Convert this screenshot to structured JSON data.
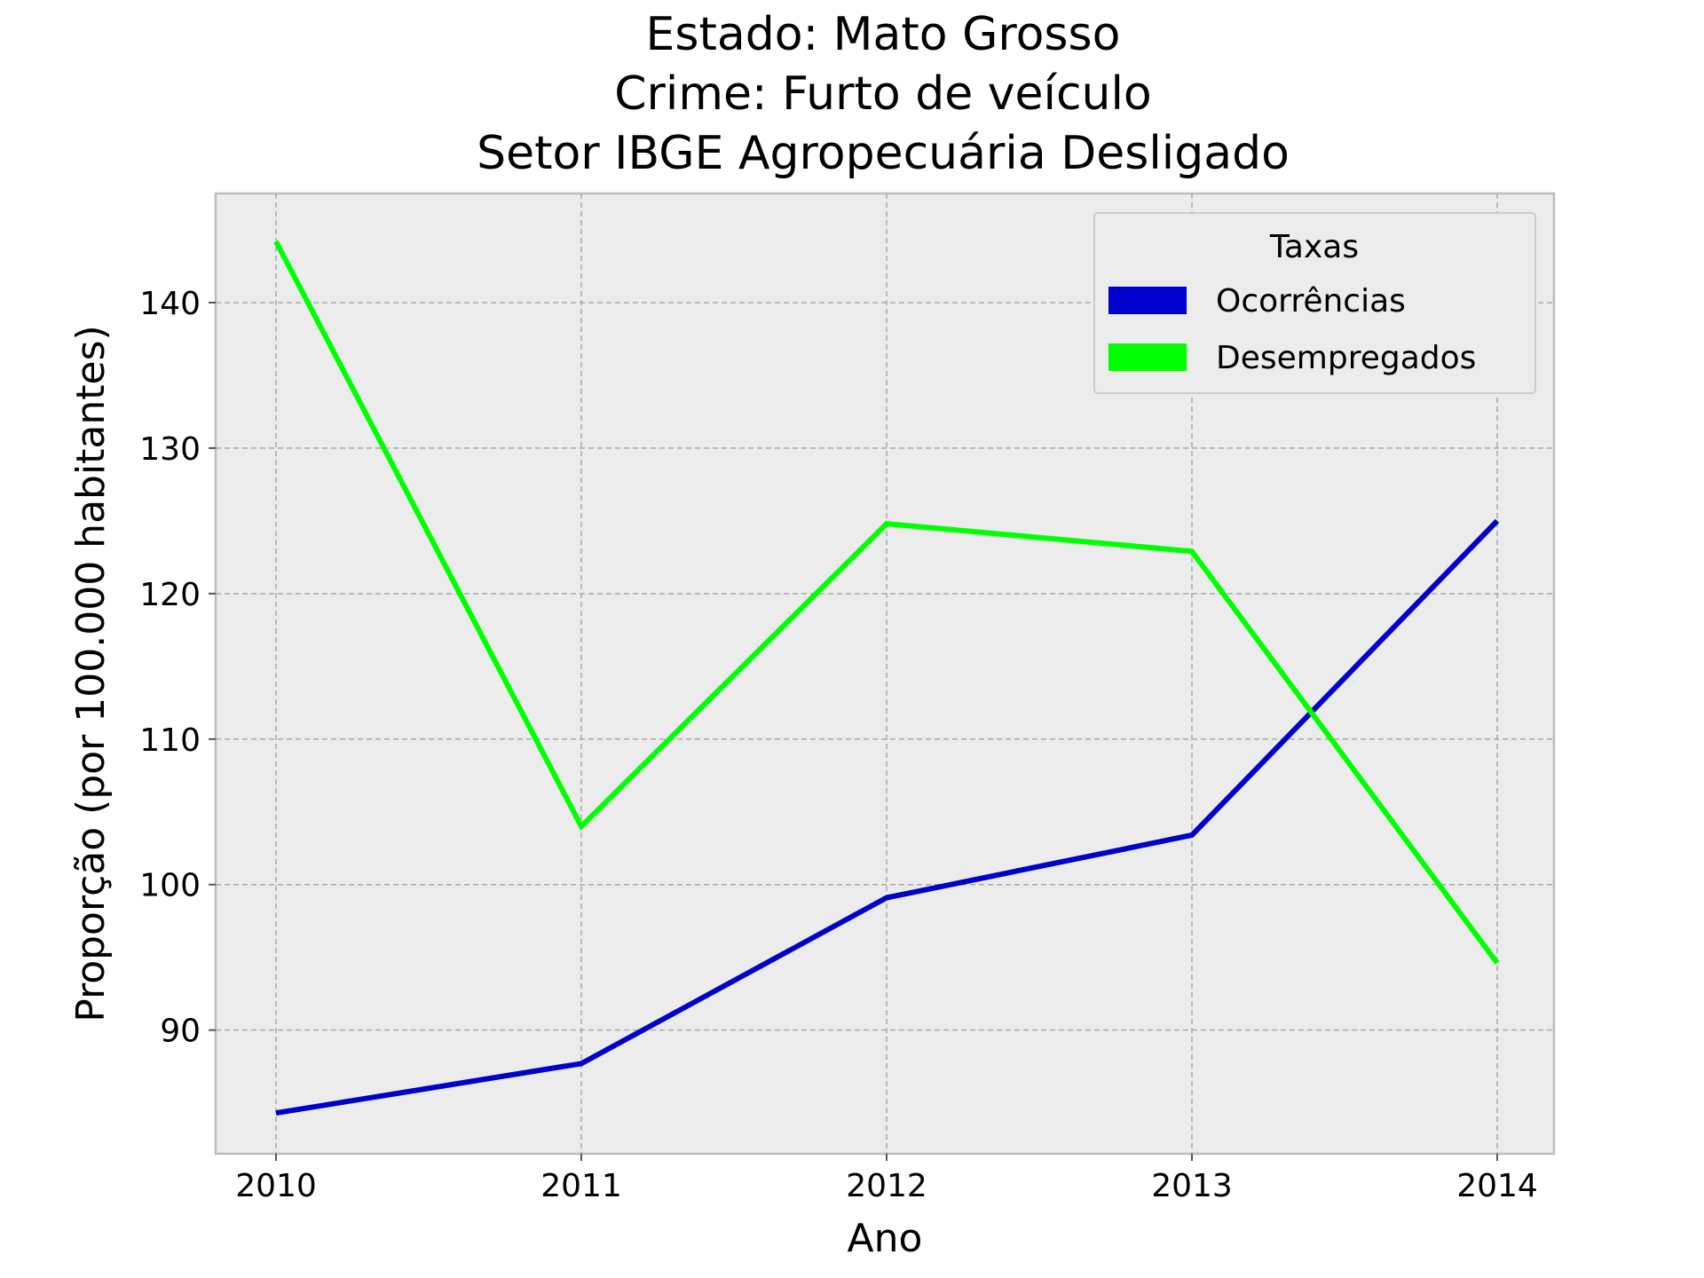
{
  "chart_data": {
    "type": "line",
    "title_lines": [
      "Estado: Mato Grosso",
      "Crime: Furto de veículo",
      "Setor IBGE  Agropecuária   Desligado"
    ],
    "xlabel": "Ano",
    "ylabel": "Proporção (por 100.000 habitantes)",
    "categories": [
      "2010",
      "2011",
      "2012",
      "2013",
      "2014"
    ],
    "yticks": [
      "90",
      "100",
      "110",
      "120",
      "130",
      "140"
    ],
    "ylim": [
      81.5,
      147.5
    ],
    "grid": true,
    "legend": {
      "title": "Taxas",
      "placement": "top-right"
    },
    "series": [
      {
        "name": "Ocorrências",
        "color": "#0000cc",
        "values": [
          84.3,
          87.7,
          99.1,
          103.4,
          125.0
        ]
      },
      {
        "name": "Desempregados",
        "color": "#00ff00",
        "values": [
          144.2,
          104.0,
          124.8,
          122.9,
          94.6
        ]
      }
    ]
  }
}
